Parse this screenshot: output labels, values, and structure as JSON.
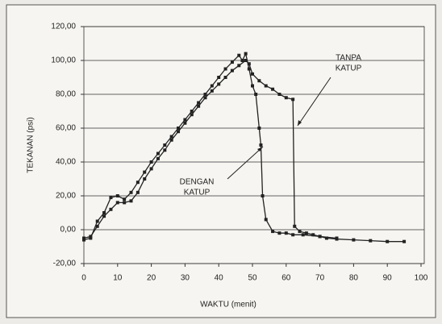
{
  "chart_data": {
    "type": "line",
    "xlabel": "WAKTU (menit)",
    "ylabel": "TEKANAN (psi)",
    "xlim": [
      0,
      100
    ],
    "xticks": [
      0,
      10,
      20,
      30,
      40,
      50,
      60,
      70,
      80,
      90,
      100
    ],
    "ylim": [
      -20,
      120
    ],
    "yticks": [
      {
        "value": -20,
        "label": "-20,00"
      },
      {
        "value": 0,
        "label": "0,00"
      },
      {
        "value": 20,
        "label": "20,00"
      },
      {
        "value": 40,
        "label": "40,00"
      },
      {
        "value": 60,
        "label": "60,00"
      },
      {
        "value": 80,
        "label": "80,00"
      },
      {
        "value": 100,
        "label": "100,00"
      },
      {
        "value": 120,
        "label": "120,00"
      }
    ],
    "grid": true,
    "series": [
      {
        "name": "TANPA KATUP",
        "color": "#222222",
        "x": [
          0,
          2,
          4,
          6,
          8,
          10,
          12,
          14,
          16,
          18,
          20,
          22,
          24,
          26,
          28,
          30,
          32,
          34,
          36,
          38,
          40,
          42,
          44,
          46,
          48,
          49,
          50,
          52,
          54,
          56,
          58,
          60,
          62,
          62.5,
          64,
          66,
          68,
          70,
          72,
          75,
          80,
          85,
          90,
          95
        ],
        "values": [
          -5,
          -4,
          2,
          8,
          12,
          16,
          16,
          17,
          22,
          30,
          36,
          42,
          47,
          53,
          58,
          63,
          68,
          73,
          78,
          82,
          86,
          90,
          94,
          97,
          100,
          98,
          92,
          88,
          85,
          83,
          80,
          78,
          77,
          2,
          -1,
          -2,
          -3,
          -4,
          -5,
          -5.5,
          -6,
          -6.5,
          -7,
          -7
        ]
      },
      {
        "name": "DENGAN KATUP",
        "color": "#222222",
        "x": [
          0,
          2,
          4,
          6,
          8,
          10,
          12,
          14,
          16,
          18,
          20,
          22,
          24,
          26,
          28,
          30,
          32,
          34,
          36,
          38,
          40,
          42,
          44,
          46,
          47,
          48,
          49,
          50,
          51,
          52,
          52.5,
          53,
          54,
          56,
          58,
          60,
          62,
          65,
          70,
          75
        ],
        "values": [
          -6,
          -5,
          5,
          10,
          19,
          20,
          18,
          22,
          28,
          34,
          40,
          45,
          50,
          55,
          60,
          65,
          70,
          75,
          80,
          85,
          90,
          95,
          99,
          103,
          100,
          104,
          95,
          85,
          80,
          60,
          50,
          20,
          6,
          -1,
          -2,
          -2,
          -3,
          -3,
          -4,
          -5
        ]
      }
    ],
    "annotations": [
      {
        "lines": [
          "TANPA",
          "KATUP"
        ]
      },
      {
        "lines": [
          "DENGAN",
          "KATUP"
        ]
      }
    ]
  }
}
